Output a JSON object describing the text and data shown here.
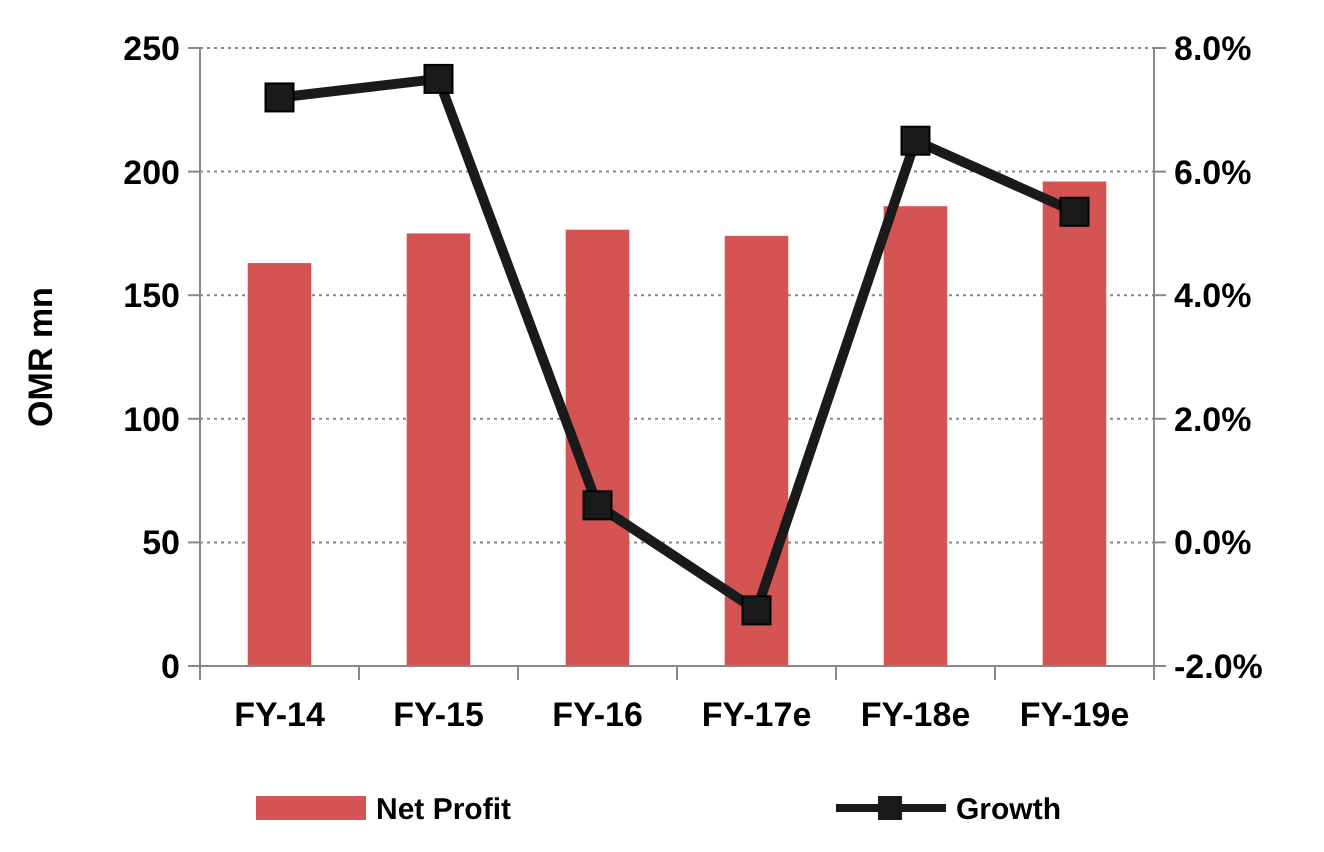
{
  "chart_data": {
    "type": "bar",
    "categories": [
      "FY-14",
      "FY-15",
      "FY-16",
      "FY-17e",
      "FY-18e",
      "FY-19e"
    ],
    "series": [
      {
        "name": "Net Profit",
        "color": "#d35453",
        "values": [
          163,
          175,
          176.5,
          174,
          186,
          196
        ]
      },
      {
        "name": "Growth",
        "type": "line",
        "axis": "y2",
        "color": "#1a1a1a",
        "marker": "square",
        "values": [
          7.2,
          7.5,
          0.6,
          -1.1,
          6.5,
          5.35
        ]
      }
    ],
    "ylabel": "OMR mn",
    "ylim": [
      0,
      250
    ],
    "yticks": [
      0,
      50,
      100,
      150,
      200,
      250
    ],
    "y2lim": [
      -2,
      8
    ],
    "y2ticks": [
      {
        "value": -2,
        "label": "-2.0%"
      },
      {
        "value": 0,
        "label": "0.0%"
      },
      {
        "value": 2,
        "label": "2.0%"
      },
      {
        "value": 4,
        "label": "4.0%"
      },
      {
        "value": 6,
        "label": "6.0%"
      },
      {
        "value": 8,
        "label": "8.0%"
      }
    ],
    "grid": "y",
    "legend": "bottom"
  }
}
